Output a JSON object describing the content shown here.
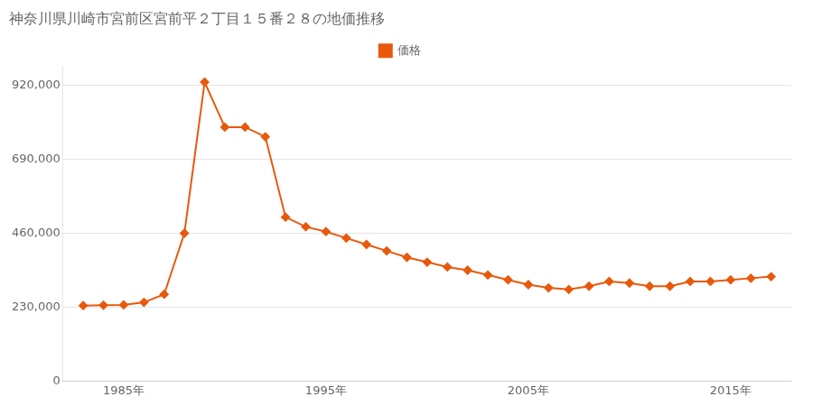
{
  "chart_data": {
    "type": "line",
    "title": "神奈川県川崎市宮前区宮前平２丁目１５番２８の地価推移",
    "x": [
      1983,
      1984,
      1985,
      1986,
      1987,
      1988,
      1989,
      1990,
      1991,
      1992,
      1993,
      1994,
      1995,
      1996,
      1997,
      1998,
      1999,
      2000,
      2001,
      2002,
      2003,
      2004,
      2005,
      2006,
      2007,
      2008,
      2009,
      2010,
      2011,
      2012,
      2013,
      2014,
      2015,
      2016,
      2017
    ],
    "series": [
      {
        "name": "価格",
        "color": "#e8590c",
        "marker": "diamond",
        "values": [
          235000,
          236000,
          237000,
          245000,
          270000,
          460000,
          930000,
          790000,
          790000,
          760000,
          510000,
          480000,
          465000,
          445000,
          425000,
          405000,
          385000,
          370000,
          355000,
          345000,
          330000,
          315000,
          300000,
          290000,
          285000,
          295000,
          310000,
          305000,
          295000,
          295000,
          310000,
          310000,
          315000,
          320000,
          325000
        ]
      }
    ],
    "xlim": [
      1982,
      2018
    ],
    "xticks": [
      {
        "value": 1985,
        "label": "1985年"
      },
      {
        "value": 1995,
        "label": "1995年"
      },
      {
        "value": 2005,
        "label": "2005年"
      },
      {
        "value": 2015,
        "label": "2015年"
      }
    ],
    "ylim": [
      0,
      980000
    ],
    "yticks": [
      0,
      {
        "value": 230000,
        "label": "230,000"
      },
      {
        "value": 460000,
        "label": "460,000"
      },
      {
        "value": 690000,
        "label": "690,000"
      },
      {
        "value": 920000,
        "label": "920,000"
      }
    ],
    "grid": "y",
    "legend": "top"
  }
}
